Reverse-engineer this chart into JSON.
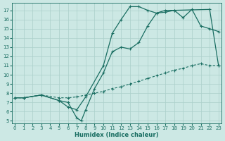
{
  "xlabel": "Humidex (Indice chaleur)",
  "bg_color": "#cce8e4",
  "grid_color": "#aacfca",
  "line_color": "#1a6e62",
  "xlim": [
    -0.3,
    23.3
  ],
  "ylim": [
    4.7,
    17.8
  ],
  "xticks": [
    0,
    1,
    2,
    3,
    4,
    5,
    6,
    7,
    8,
    9,
    10,
    11,
    12,
    13,
    14,
    15,
    16,
    17,
    18,
    19,
    20,
    21,
    22,
    23
  ],
  "yticks": [
    5,
    6,
    7,
    8,
    9,
    10,
    11,
    12,
    13,
    14,
    15,
    16,
    17
  ],
  "curve_upper_x": [
    0,
    1,
    3,
    5,
    6,
    7,
    8,
    10,
    11,
    12,
    13,
    14,
    15,
    16,
    17,
    18,
    19,
    20,
    21,
    22,
    23
  ],
  "curve_upper_y": [
    7.5,
    7.5,
    7.8,
    7.2,
    6.5,
    6.2,
    7.6,
    11.0,
    14.5,
    16.0,
    17.4,
    17.4,
    17.0,
    16.7,
    16.8,
    17.0,
    16.2,
    17.1,
    15.3,
    15.0,
    14.7
  ],
  "curve_lower_x": [
    0,
    1,
    3,
    5,
    6,
    7,
    7.5,
    8,
    9,
    10,
    11,
    12,
    13,
    14,
    15,
    16,
    17,
    18,
    22,
    23
  ],
  "curve_lower_y": [
    7.5,
    7.5,
    7.8,
    7.2,
    7.0,
    5.3,
    5.0,
    6.2,
    8.5,
    10.2,
    12.5,
    13.0,
    12.8,
    13.5,
    15.3,
    16.7,
    17.0,
    17.0,
    17.1,
    11.0
  ],
  "curve_diag_x": [
    0,
    1,
    3,
    5,
    6,
    7,
    8,
    9,
    10,
    11,
    12,
    13,
    14,
    15,
    16,
    17,
    18,
    19,
    20,
    21,
    22,
    23
  ],
  "curve_diag_y": [
    7.5,
    7.5,
    7.8,
    7.5,
    7.5,
    7.6,
    7.8,
    8.0,
    8.2,
    8.5,
    8.7,
    9.0,
    9.3,
    9.6,
    9.9,
    10.2,
    10.5,
    10.7,
    11.0,
    11.2,
    11.0,
    11.0
  ]
}
